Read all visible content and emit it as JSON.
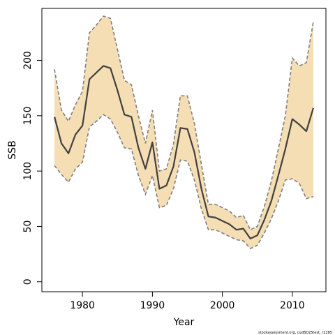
{
  "chart_data": {
    "type": "line",
    "title": "",
    "xlabel": "Year",
    "ylabel": "SSB",
    "xlim": [
      1974.2,
      2014.8
    ],
    "ylim": [
      -9,
      247
    ],
    "xticks": [
      1980,
      1990,
      2000,
      2010
    ],
    "yticks": [
      0,
      50,
      100,
      150,
      200
    ],
    "grid": false,
    "x": [
      1976,
      1977,
      1978,
      1979,
      1980,
      1981,
      1982,
      1983,
      1984,
      1985,
      1986,
      1987,
      1988,
      1989,
      1990,
      1991,
      1992,
      1993,
      1994,
      1995,
      1996,
      1997,
      1998,
      1999,
      2000,
      2001,
      2002,
      2003,
      2004,
      2005,
      2006,
      2007,
      2008,
      2009,
      2010,
      2011,
      2012,
      2013
    ],
    "series": [
      {
        "role": "estimate",
        "color": "#404040",
        "values": [
          149,
          125,
          116,
          133,
          141,
          183,
          189,
          195,
          193,
          173,
          151,
          149,
          121,
          102,
          126,
          84,
          87,
          104,
          139,
          138,
          117,
          84,
          59,
          58,
          55,
          52,
          47,
          48,
          39,
          42,
          56,
          73,
          96,
          120,
          147,
          142,
          136,
          157
        ]
      },
      {
        "role": "upper",
        "color": "#7f7f7f",
        "values": [
          192,
          155,
          145,
          160,
          172,
          225,
          232,
          240,
          238,
          210,
          182,
          178,
          150,
          125,
          155,
          100,
          102,
          124,
          168,
          168,
          143,
          106,
          70,
          70,
          67,
          64,
          58,
          60,
          47,
          50,
          68,
          91,
          120,
          150,
          202,
          195,
          198,
          235
        ]
      },
      {
        "role": "lower",
        "color": "#7f7f7f",
        "values": [
          105,
          97,
          90,
          102,
          108,
          140,
          145,
          151,
          147,
          135,
          121,
          120,
          96,
          79,
          96,
          67,
          69,
          84,
          110,
          109,
          92,
          66,
          47,
          47,
          44,
          41,
          38,
          37,
          30,
          33,
          44,
          57,
          73,
          92,
          93,
          89,
          75,
          77
        ]
      }
    ],
    "band_fill": "#f5deb3",
    "caption": "stockassessment.org, codBD25test, r2285"
  }
}
